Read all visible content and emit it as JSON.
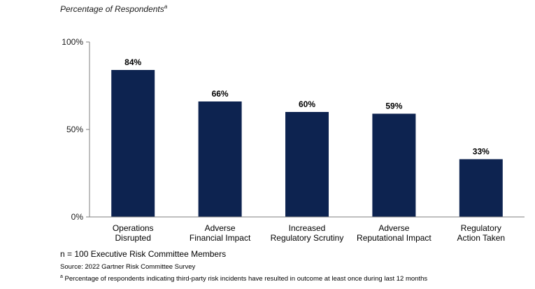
{
  "chart_data": {
    "type": "bar",
    "subtitle": "Percentage of Respondents",
    "subtitle_marker": "a",
    "categories": [
      [
        "Operations",
        "Disrupted"
      ],
      [
        "Adverse",
        "Financial Impact"
      ],
      [
        "Increased",
        "Regulatory Scrutiny"
      ],
      [
        "Adverse",
        "Reputational Impact"
      ],
      [
        "Regulatory",
        "Action Taken"
      ]
    ],
    "values": [
      84,
      66,
      60,
      59,
      33
    ],
    "data_labels": [
      "84%",
      "66%",
      "60%",
      "59%",
      "33%"
    ],
    "ylim": [
      0,
      100
    ],
    "yticks": [
      {
        "value": 0,
        "label": "0%"
      },
      {
        "value": 50,
        "label": "50%"
      },
      {
        "value": 100,
        "label": "100%"
      }
    ],
    "bar_color": "#0d2350",
    "axis_color": "#7f7f7f",
    "grid": false
  },
  "notes": {
    "n": "n = 100 Executive Risk Committee Members",
    "source": "Source: 2022 Gartner Risk Committee Survey",
    "footnote_marker": "a",
    "footnote": " Percentage of respondents indicating third-party risk incidents have resulted in outcome at least once during last 12 months"
  }
}
